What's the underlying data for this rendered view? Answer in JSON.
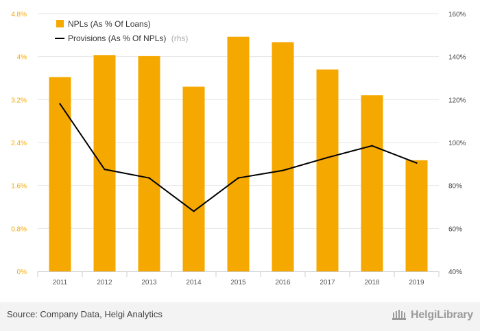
{
  "chart_data": {
    "type": "bar+line",
    "categories": [
      "2011",
      "2012",
      "2013",
      "2014",
      "2015",
      "2016",
      "2017",
      "2018",
      "2019"
    ],
    "series": [
      {
        "name": "NPLs (As % Of Loans)",
        "type": "bar",
        "axis": "left",
        "color": "#f5a800",
        "values": [
          3.62,
          4.03,
          4.01,
          3.44,
          4.37,
          4.27,
          3.76,
          3.28,
          2.07
        ]
      },
      {
        "name": "Provisions (As % Of NPLs)",
        "axis_suffix": "(rhs)",
        "type": "line",
        "axis": "right",
        "color": "#000000",
        "values": [
          118,
          87.5,
          83.5,
          68,
          83.5,
          87,
          93,
          98.5,
          90.5
        ]
      }
    ],
    "y_left": {
      "ticks": [
        "0%",
        "0.8%",
        "1.6%",
        "2.4%",
        "3.2%",
        "4%",
        "4.8%"
      ],
      "min": 0,
      "max": 4.8,
      "step": 0.8
    },
    "y_right": {
      "ticks": [
        "40%",
        "60%",
        "80%",
        "100%",
        "120%",
        "140%",
        "160%"
      ],
      "min": 40,
      "max": 160,
      "step": 20
    },
    "grid": true,
    "legend_position": "top-left"
  },
  "footer": {
    "source": "Source: Company Data, Helgi Analytics",
    "logo_text": "HelgiLibrary"
  }
}
